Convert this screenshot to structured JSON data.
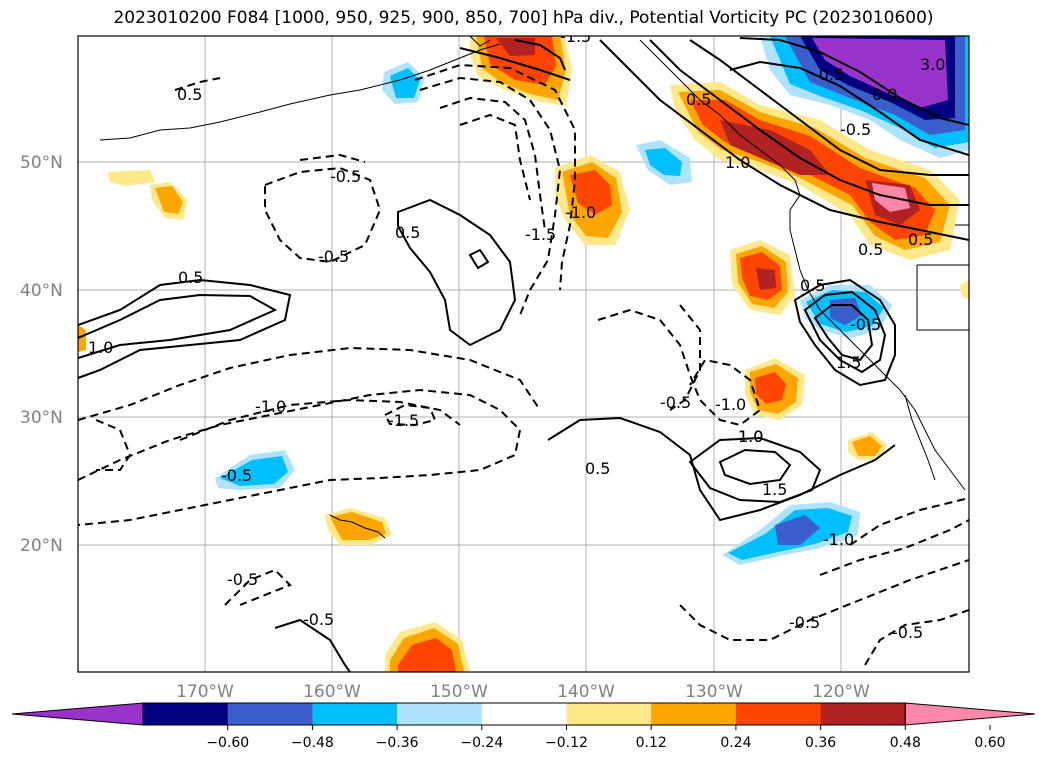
{
  "title": "2023010200 F084 [1000, 950, 925, 900, 850, 700] hPa div., Potential Vorticity PC (2023010600)",
  "map": {
    "lat_labels": [
      "50°N",
      "40°N",
      "30°N",
      "20°N"
    ],
    "lon_labels": [
      "170°W",
      "160°W",
      "150°W",
      "140°W",
      "130°W",
      "120°W"
    ],
    "contour_labels": [
      "0.5",
      "-0.5",
      "-1.5",
      "1.0",
      "-0.5",
      "-0.5",
      "0.5",
      "0.5",
      "-1.5",
      "-1.0",
      "1.0",
      "-1.0",
      "-1.5",
      "-0.5",
      "1.0",
      "1.5",
      "0.5",
      "-0.5",
      "-1.0",
      "-0.5",
      "-0.5",
      "0.5",
      "-0.5",
      "-0.5",
      "3.0",
      "0.0",
      "1.0",
      "0.5",
      "1.5",
      "0.5",
      "0.5",
      "-0.5",
      "-1.0",
      "-0.5"
    ]
  },
  "colorbar": {
    "ticks": [
      "−0.60",
      "−0.48",
      "−0.36",
      "−0.24",
      "−0.12",
      "0.12",
      "0.24",
      "0.36",
      "0.48",
      "0.60"
    ],
    "colors": [
      "#9933cc",
      "#000080",
      "#3a5fcd",
      "#00bfff",
      "#aee3ff",
      "#ffffff",
      "#ffe88a",
      "#ffa500",
      "#ff4500",
      "#b22222",
      "#ff88aa"
    ]
  }
}
